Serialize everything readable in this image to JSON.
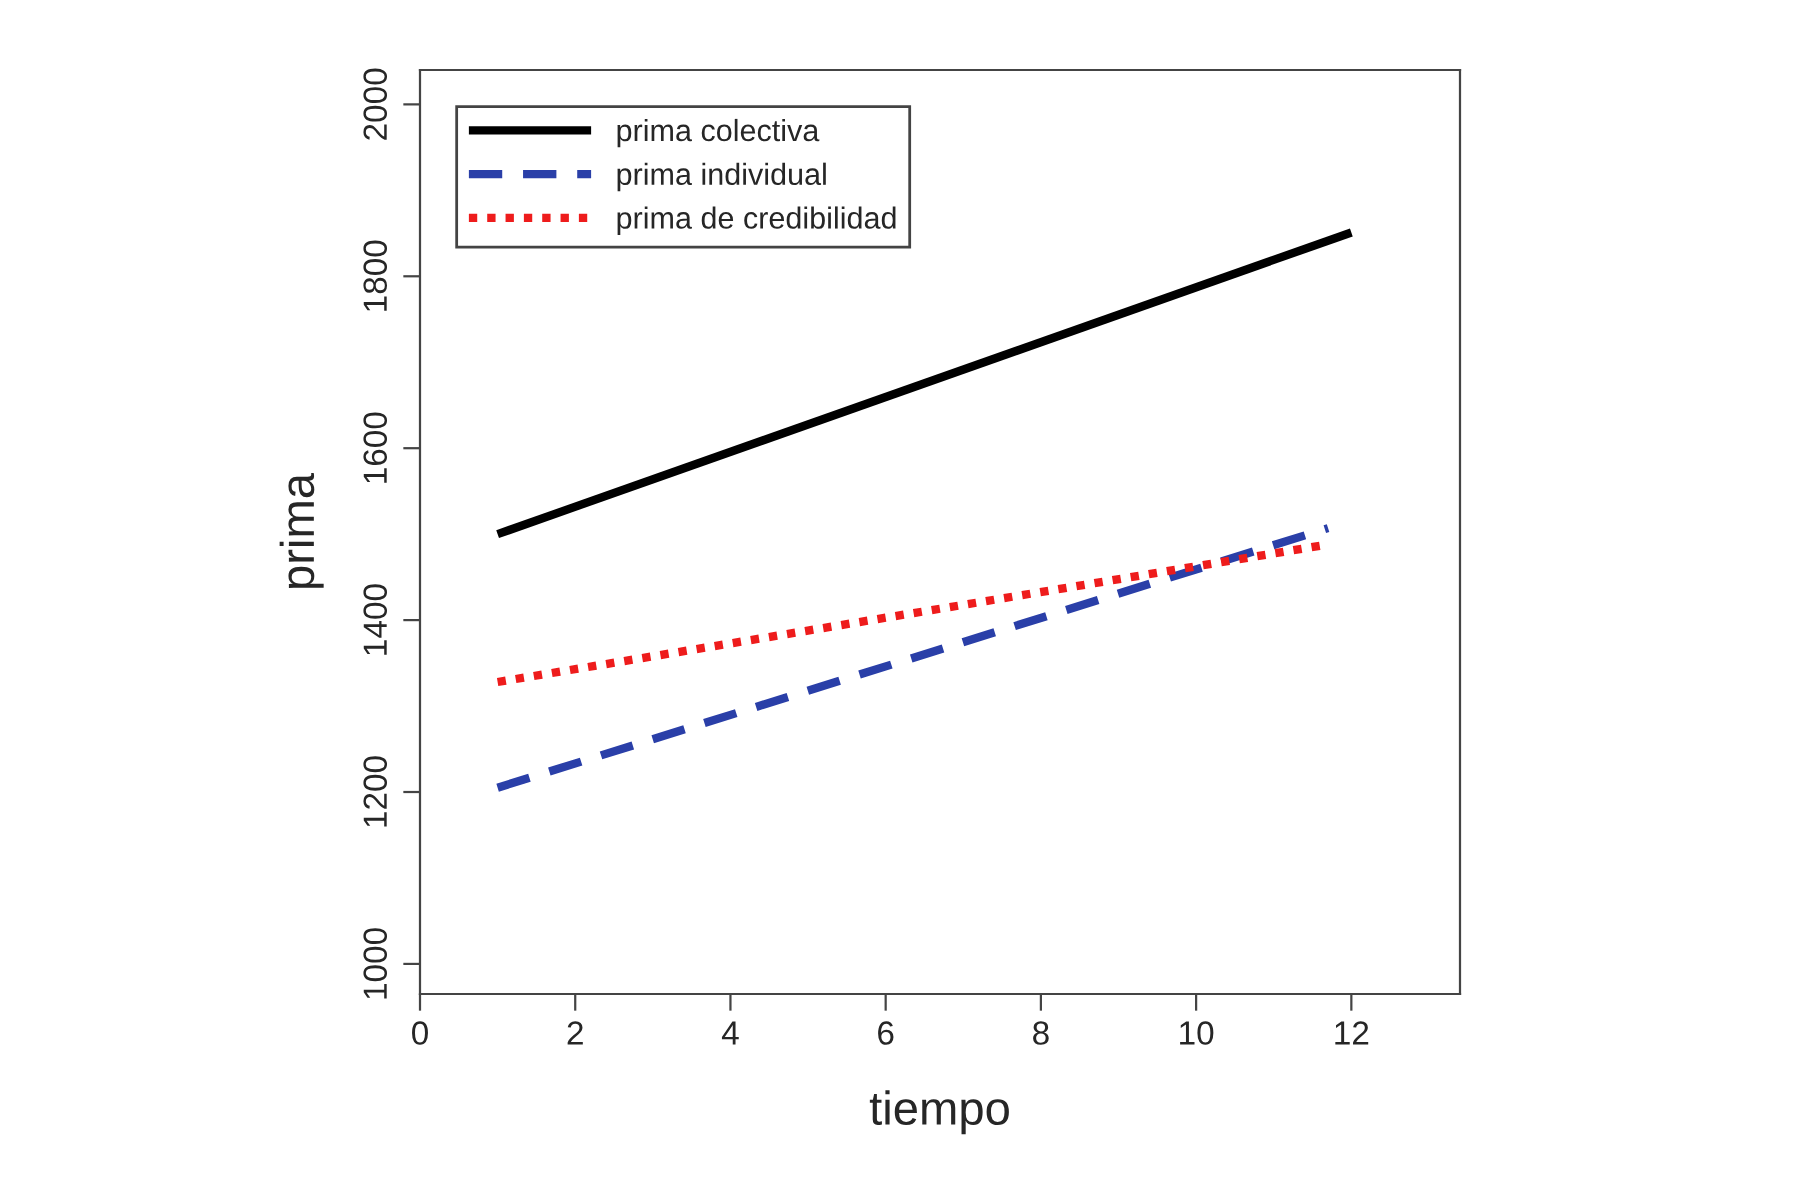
{
  "chart_data": {
    "type": "line",
    "xlabel": "tiempo",
    "ylabel": "prima",
    "series": [
      {
        "name": "prima colectiva",
        "color": "#000000",
        "line_style": "solid",
        "x": [
          1,
          12
        ],
        "values": [
          1500,
          1851
        ]
      },
      {
        "name": "prima individual",
        "color": "#2a3fa8",
        "line_style": "dashed",
        "x": [
          1,
          11.7
        ],
        "values": [
          1205,
          1507
        ]
      },
      {
        "name": "prima de credibilidad",
        "color": "#ee1c1c",
        "line_style": "dotted",
        "x": [
          1,
          11.7
        ],
        "values": [
          1328,
          1488
        ]
      }
    ],
    "xlim": [
      0,
      13.4
    ],
    "ylim": [
      965,
      2040
    ],
    "xticks": [
      0,
      2,
      4,
      6,
      8,
      10,
      12
    ],
    "yticks": [
      1000,
      1200,
      1400,
      1600,
      1800,
      2000
    ],
    "grid": false,
    "legend": "top left",
    "marker": "none"
  }
}
